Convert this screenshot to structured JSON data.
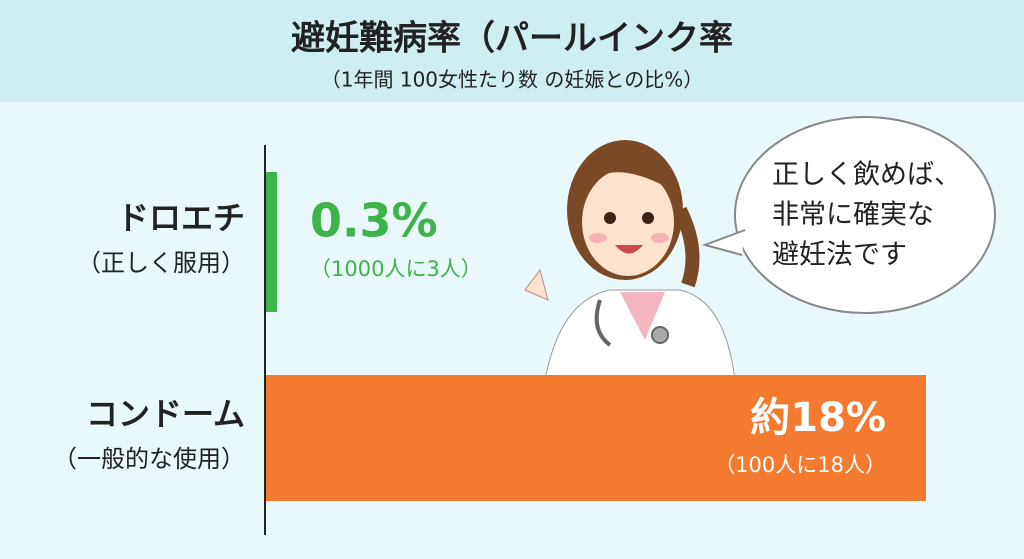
{
  "chart_data": {
    "type": "bar",
    "orientation": "horizontal",
    "title": "避妊難病率（パールインク率",
    "subtitle": "（1年間 100女性たり数 の妊娠との比%）",
    "categories": [
      "ドロエチ",
      "コンドーム"
    ],
    "category_notes": [
      "（正しく服用）",
      "（一般的な使用）"
    ],
    "values": [
      0.3,
      18
    ],
    "value_labels": [
      "0.3%",
      "約18%"
    ],
    "value_notes": [
      "（1000人に3人）",
      "（100人に18人）"
    ],
    "colors": [
      "#3db34a",
      "#f47a2f"
    ],
    "speech": [
      "正しく飲めば、",
      "非常に確実な",
      "避妊法です"
    ]
  }
}
